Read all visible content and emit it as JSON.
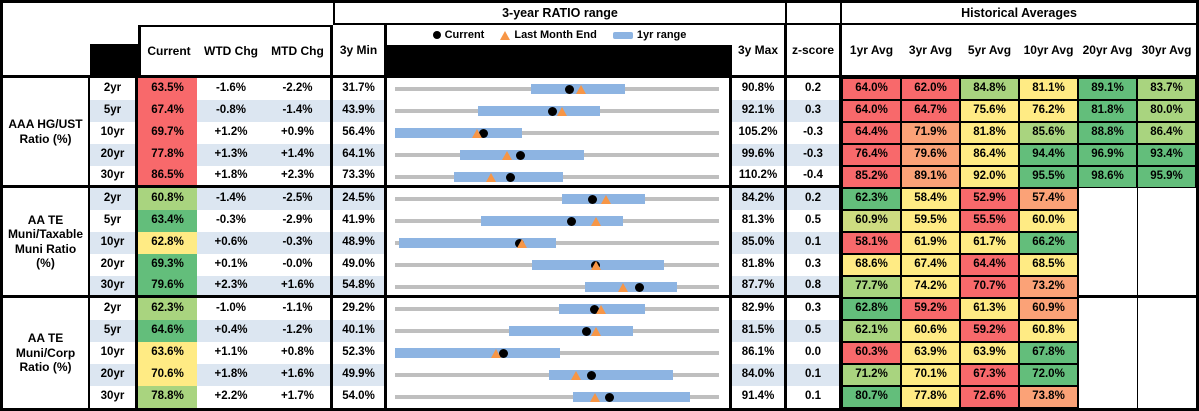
{
  "chart_data": {
    "type": "table",
    "title": "3-year RATIO range",
    "hist_title": "Historical Averages",
    "columns": {
      "current": "Current",
      "wtd_chg": "WTD Chg",
      "mtd_chg": "MTD Chg",
      "min": "3y Min",
      "max": "3y Max",
      "zscore": "z-score",
      "avgs": [
        "1yr Avg",
        "3yr Avg",
        "5yr Avg",
        "10yr Avg",
        "20yr Avg",
        "30yr Avg"
      ]
    },
    "legend": [
      {
        "marker": "dot",
        "label": "Current"
      },
      {
        "marker": "triangle",
        "label": "Last Month End"
      },
      {
        "marker": "bar",
        "label": "1yr range"
      }
    ],
    "groups": [
      {
        "label": "AAA HG/UST Ratio (%)",
        "rows": [
          {
            "tenor": "2yr",
            "current": "63.5%",
            "ccolor": "red",
            "wtd": "-1.6%",
            "mtd": "-2.2%",
            "min": "31.7%",
            "max": "90.8%",
            "z": "0.2",
            "range": {
              "axis_min": 31.7,
              "axis_max": 90.8,
              "bar_1yr": [
                56.5,
                73.7
              ],
              "current": 63.5,
              "last_month_end": 65.7
            },
            "avgs": [
              [
                "64.0%",
                "red"
              ],
              [
                "62.0%",
                "red"
              ],
              [
                "84.8%",
                "lightgreen"
              ],
              [
                "81.1%",
                "yellow"
              ],
              [
                "89.1%",
                "green"
              ],
              [
                "83.7%",
                "lightgreen"
              ]
            ]
          },
          {
            "tenor": "5yr",
            "current": "67.4%",
            "ccolor": "red",
            "wtd": "-0.8%",
            "mtd": "-1.4%",
            "min": "43.9%",
            "max": "92.1%",
            "z": "0.3",
            "range": {
              "axis_min": 43.9,
              "axis_max": 92.1,
              "bar_1yr": [
                56.3,
                74.4
              ],
              "current": 67.4,
              "last_month_end": 68.8
            },
            "avgs": [
              [
                "64.0%",
                "red"
              ],
              [
                "64.7%",
                "red"
              ],
              [
                "75.6%",
                "yellow"
              ],
              [
                "76.2%",
                "yellow"
              ],
              [
                "81.8%",
                "green"
              ],
              [
                "80.0%",
                "lightgreen"
              ]
            ]
          },
          {
            "tenor": "10yr",
            "current": "69.7%",
            "ccolor": "red",
            "wtd": "+1.2%",
            "mtd": "+0.9%",
            "min": "56.4%",
            "max": "105.2%",
            "z": "-0.3",
            "range": {
              "axis_min": 56.4,
              "axis_max": 105.2,
              "bar_1yr": [
                56.4,
                75.6
              ],
              "current": 69.7,
              "last_month_end": 68.8
            },
            "avgs": [
              [
                "64.4%",
                "red"
              ],
              [
                "71.9%",
                "orange"
              ],
              [
                "81.8%",
                "yellow"
              ],
              [
                "85.6%",
                "lightgreen"
              ],
              [
                "88.8%",
                "green"
              ],
              [
                "86.4%",
                "lightgreen"
              ]
            ]
          },
          {
            "tenor": "20yr",
            "current": "77.8%",
            "ccolor": "red",
            "wtd": "+1.3%",
            "mtd": "+1.4%",
            "min": "64.1%",
            "max": "99.6%",
            "z": "-0.3",
            "range": {
              "axis_min": 64.1,
              "axis_max": 99.6,
              "bar_1yr": [
                71.2,
                84.8
              ],
              "current": 77.8,
              "last_month_end": 76.4
            },
            "avgs": [
              [
                "76.4%",
                "red"
              ],
              [
                "79.6%",
                "orange"
              ],
              [
                "86.4%",
                "yellow"
              ],
              [
                "94.4%",
                "green"
              ],
              [
                "96.9%",
                "green"
              ],
              [
                "93.4%",
                "green"
              ]
            ]
          },
          {
            "tenor": "30yr",
            "current": "86.5%",
            "ccolor": "red",
            "wtd": "+1.8%",
            "mtd": "+2.3%",
            "min": "73.3%",
            "max": "110.2%",
            "z": "-0.4",
            "range": {
              "axis_min": 73.3,
              "axis_max": 110.2,
              "bar_1yr": [
                80.0,
                92.4
              ],
              "current": 86.5,
              "last_month_end": 84.2
            },
            "avgs": [
              [
                "85.2%",
                "red"
              ],
              [
                "89.1%",
                "orange"
              ],
              [
                "92.0%",
                "yellow"
              ],
              [
                "95.5%",
                "green"
              ],
              [
                "98.6%",
                "green"
              ],
              [
                "95.9%",
                "green"
              ]
            ]
          }
        ]
      },
      {
        "label": "AA TE Muni/Taxable Muni Ratio (%)",
        "rows": [
          {
            "tenor": "2yr",
            "current": "60.8%",
            "ccolor": "lightgreen",
            "wtd": "-1.4%",
            "mtd": "-2.5%",
            "min": "24.5%",
            "max": "84.2%",
            "z": "0.2",
            "range": {
              "axis_min": 24.5,
              "axis_max": 84.2,
              "bar_1yr": [
                55.3,
                70.6
              ],
              "current": 60.8,
              "last_month_end": 63.3
            },
            "avgs": [
              [
                "62.3%",
                "green"
              ],
              [
                "58.4%",
                "yellow"
              ],
              [
                "52.9%",
                "red"
              ],
              [
                "57.4%",
                "orange"
              ],
              null,
              null
            ]
          },
          {
            "tenor": "5yr",
            "current": "63.4%",
            "ccolor": "green",
            "wtd": "-0.3%",
            "mtd": "-2.9%",
            "min": "41.9%",
            "max": "81.3%",
            "z": "0.5",
            "range": {
              "axis_min": 41.9,
              "axis_max": 81.3,
              "bar_1yr": [
                52.3,
                69.6
              ],
              "current": 63.4,
              "last_month_end": 66.3
            },
            "avgs": [
              [
                "60.9%",
                "yellowgreen"
              ],
              [
                "59.5%",
                "yellow"
              ],
              [
                "55.5%",
                "red"
              ],
              [
                "60.0%",
                "yellow"
              ],
              null,
              null
            ]
          },
          {
            "tenor": "10yr",
            "current": "62.8%",
            "ccolor": "yellow",
            "wtd": "+0.6%",
            "mtd": "-0.3%",
            "min": "48.9%",
            "max": "85.0%",
            "z": "0.1",
            "range": {
              "axis_min": 48.9,
              "axis_max": 85.0,
              "bar_1yr": [
                49.4,
                66.8
              ],
              "current": 62.8,
              "last_month_end": 63.1
            },
            "avgs": [
              [
                "58.1%",
                "red"
              ],
              [
                "61.9%",
                "yellow"
              ],
              [
                "61.7%",
                "yellow"
              ],
              [
                "66.2%",
                "green"
              ],
              null,
              null
            ]
          },
          {
            "tenor": "20yr",
            "current": "69.3%",
            "ccolor": "green",
            "wtd": "+0.1%",
            "mtd": "-0.0%",
            "min": "49.0%",
            "max": "81.8%",
            "z": "0.3",
            "range": {
              "axis_min": 49.0,
              "axis_max": 81.8,
              "bar_1yr": [
                62.9,
                76.2
              ],
              "current": 69.3,
              "last_month_end": 69.3
            },
            "avgs": [
              [
                "68.6%",
                "yellow"
              ],
              [
                "67.4%",
                "yellow"
              ],
              [
                "64.4%",
                "red"
              ],
              [
                "68.5%",
                "yellow"
              ],
              null,
              null
            ]
          },
          {
            "tenor": "30yr",
            "current": "79.6%",
            "ccolor": "green",
            "wtd": "+2.3%",
            "mtd": "+1.6%",
            "min": "54.8%",
            "max": "87.7%",
            "z": "0.8",
            "range": {
              "axis_min": 54.8,
              "axis_max": 87.7,
              "bar_1yr": [
                74.1,
                83.4
              ],
              "current": 79.6,
              "last_month_end": 78.0
            },
            "avgs": [
              [
                "77.7%",
                "lightgreen"
              ],
              [
                "74.2%",
                "yellow"
              ],
              [
                "70.7%",
                "red"
              ],
              [
                "73.2%",
                "orange"
              ],
              null,
              null
            ]
          }
        ]
      },
      {
        "label": "AA TE Muni/Corp Ratio (%)",
        "rows": [
          {
            "tenor": "2yr",
            "current": "62.3%",
            "ccolor": "lightgreen",
            "wtd": "-1.0%",
            "mtd": "-1.1%",
            "min": "29.2%",
            "max": "82.9%",
            "z": "0.3",
            "range": {
              "axis_min": 29.2,
              "axis_max": 82.9,
              "bar_1yr": [
                56.3,
                70.7
              ],
              "current": 62.3,
              "last_month_end": 63.4
            },
            "avgs": [
              [
                "62.8%",
                "green"
              ],
              [
                "59.2%",
                "red"
              ],
              [
                "61.3%",
                "yellow"
              ],
              [
                "60.9%",
                "orange"
              ],
              null,
              null
            ]
          },
          {
            "tenor": "5yr",
            "current": "64.6%",
            "ccolor": "green",
            "wtd": "+0.4%",
            "mtd": "-1.2%",
            "min": "40.1%",
            "max": "81.5%",
            "z": "0.5",
            "range": {
              "axis_min": 40.1,
              "axis_max": 81.5,
              "bar_1yr": [
                54.7,
                70.5
              ],
              "current": 64.6,
              "last_month_end": 65.8
            },
            "avgs": [
              [
                "62.1%",
                "lightgreen"
              ],
              [
                "60.6%",
                "yellow"
              ],
              [
                "59.2%",
                "red"
              ],
              [
                "60.8%",
                "yellow"
              ],
              null,
              null
            ]
          },
          {
            "tenor": "10yr",
            "current": "63.6%",
            "ccolor": "yellow",
            "wtd": "+1.1%",
            "mtd": "+0.8%",
            "min": "52.3%",
            "max": "86.1%",
            "z": "0.0",
            "range": {
              "axis_min": 52.3,
              "axis_max": 86.1,
              "bar_1yr": [
                52.3,
                69.5
              ],
              "current": 63.6,
              "last_month_end": 62.8
            },
            "avgs": [
              [
                "60.3%",
                "red"
              ],
              [
                "63.9%",
                "yellow"
              ],
              [
                "63.9%",
                "yellow"
              ],
              [
                "67.8%",
                "green"
              ],
              null,
              null
            ]
          },
          {
            "tenor": "20yr",
            "current": "70.6%",
            "ccolor": "yellow",
            "wtd": "+1.8%",
            "mtd": "+1.6%",
            "min": "49.9%",
            "max": "84.0%",
            "z": "0.1",
            "range": {
              "axis_min": 49.9,
              "axis_max": 84.0,
              "bar_1yr": [
                66.1,
                79.2
              ],
              "current": 70.6,
              "last_month_end": 69.0
            },
            "avgs": [
              [
                "71.2%",
                "lightgreen"
              ],
              [
                "70.1%",
                "yellow"
              ],
              [
                "67.3%",
                "red"
              ],
              [
                "72.0%",
                "green"
              ],
              null,
              null
            ]
          },
          {
            "tenor": "30yr",
            "current": "78.8%",
            "ccolor": "lightgreen",
            "wtd": "+2.2%",
            "mtd": "+1.7%",
            "min": "54.0%",
            "max": "91.4%",
            "z": "0.1",
            "range": {
              "axis_min": 54.0,
              "axis_max": 91.4,
              "bar_1yr": [
                74.6,
                88.0
              ],
              "current": 78.8,
              "last_month_end": 77.1
            },
            "avgs": [
              [
                "80.7%",
                "green"
              ],
              [
                "77.8%",
                "yellow"
              ],
              [
                "72.6%",
                "red"
              ],
              [
                "73.8%",
                "orange"
              ],
              null,
              null
            ]
          }
        ]
      }
    ]
  },
  "colors": {
    "red": "#F8696B",
    "orange": "#FBA277",
    "yellow": "#FFEB84",
    "yellowgreen": "#CDDC81",
    "lightgreen": "#A9D47F",
    "green": "#63BE7B",
    "row_stripe": "#DCE6F1",
    "range_bar": "#8DB4E2",
    "range_track": "#BFBFBF",
    "marker_triangle": "#F79646",
    "marker_dot": "#000000",
    "header_black": "#000000"
  }
}
